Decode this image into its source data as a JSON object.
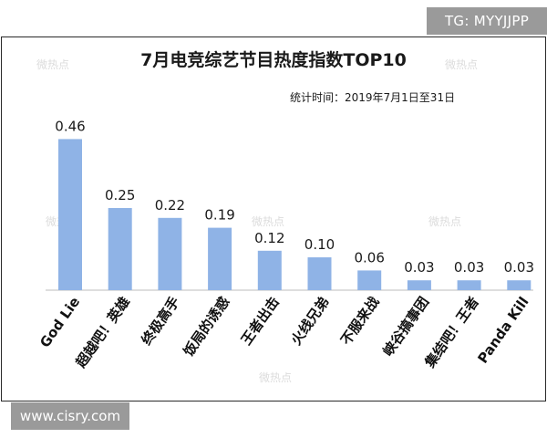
{
  "corner_tag_top": "TG: MYYJJPP",
  "corner_tag_bottom": "www.cisry.com",
  "watermark": "微热点",
  "chart_data": {
    "type": "bar",
    "title": "7月电竞综艺节目热度指数TOP10",
    "subtitle": "统计时间：2019年7月1日至31日",
    "xlabel": "",
    "ylabel": "",
    "categories": [
      "God Lie",
      "超越吧！英雄",
      "终极高手",
      "饭局的诱惑",
      "王者出击",
      "火线兄弟",
      "不服来战",
      "峡谷搞事团",
      "集结吧！王者",
      "Panda Kill"
    ],
    "values": [
      0.46,
      0.25,
      0.22,
      0.19,
      0.12,
      0.1,
      0.06,
      0.03,
      0.03,
      0.03
    ],
    "value_labels": [
      "0.46",
      "0.25",
      "0.22",
      "0.19",
      "0.12",
      "0.10",
      "0.06",
      "0.03",
      "0.03",
      "0.03"
    ],
    "ylim": [
      0,
      0.5
    ],
    "grid": false,
    "legend": "none",
    "bar_color": "#8fb3e6",
    "axis_color": "#bdbdbd"
  }
}
